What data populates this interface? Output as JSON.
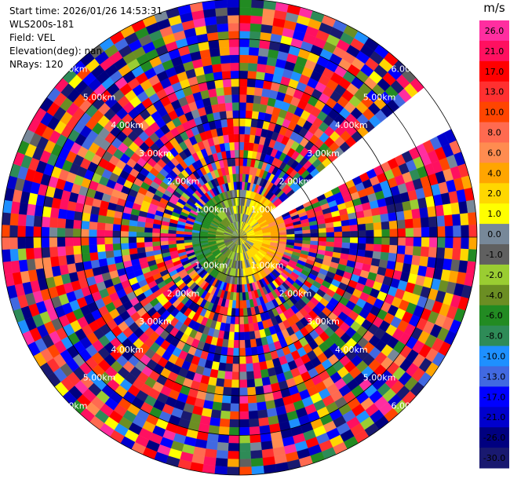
{
  "info": {
    "start_time": "Start time: 2026/01/26 14:53:31",
    "instrument": "WLS200s-181",
    "field": "Field: VEL",
    "elevation": "Elevation(deg): nan",
    "nrays": "NRays: 120"
  },
  "chart_data": {
    "type": "ppi",
    "field": "VEL",
    "nrays": 120,
    "max_range_km": 6.0,
    "range_rings_km": [
      1.0,
      2.0,
      3.0,
      4.0,
      5.0,
      6.0
    ],
    "ring_labels": [
      "1.00km",
      "2.00km",
      "3.00km",
      "4.00km",
      "5.00km",
      "6.00km"
    ],
    "range_gates": 30,
    "missing_sector_deg": [
      52,
      64
    ],
    "velocity_pattern": {
      "description_free": true,
      "near_field_gates": 6,
      "near_field_west_deg_positive_sign": "negative",
      "near_field_east_sign": "positive",
      "near_field_speed_ms": 3.0
    },
    "colorbar": {
      "unit": "m/s",
      "ticks": [
        "26.0",
        "21.0",
        "17.0",
        "13.0",
        "10.0",
        "8.0",
        "6.0",
        "4.0",
        "2.0",
        "1.0",
        "0.0",
        "-1.0",
        "-2.0",
        "-4.0",
        "-6.0",
        "-8.0",
        "-10.0",
        "-13.0",
        "-17.0",
        "-21.0",
        "-26.0",
        "-30.0"
      ],
      "colors": [
        "#ff2ea0",
        "#ff1060",
        "#ff0000",
        "#ff3030",
        "#ff4500",
        "#ff6a50",
        "#ff8c50",
        "#ffa500",
        "#ffd700",
        "#ffff00",
        "#778899",
        "#606060",
        "#9acd32",
        "#6b8e23",
        "#228b22",
        "#2e8b57",
        "#1e90ff",
        "#4169e1",
        "#0000ff",
        "#0000cd",
        "#000080",
        "#191970"
      ]
    }
  }
}
